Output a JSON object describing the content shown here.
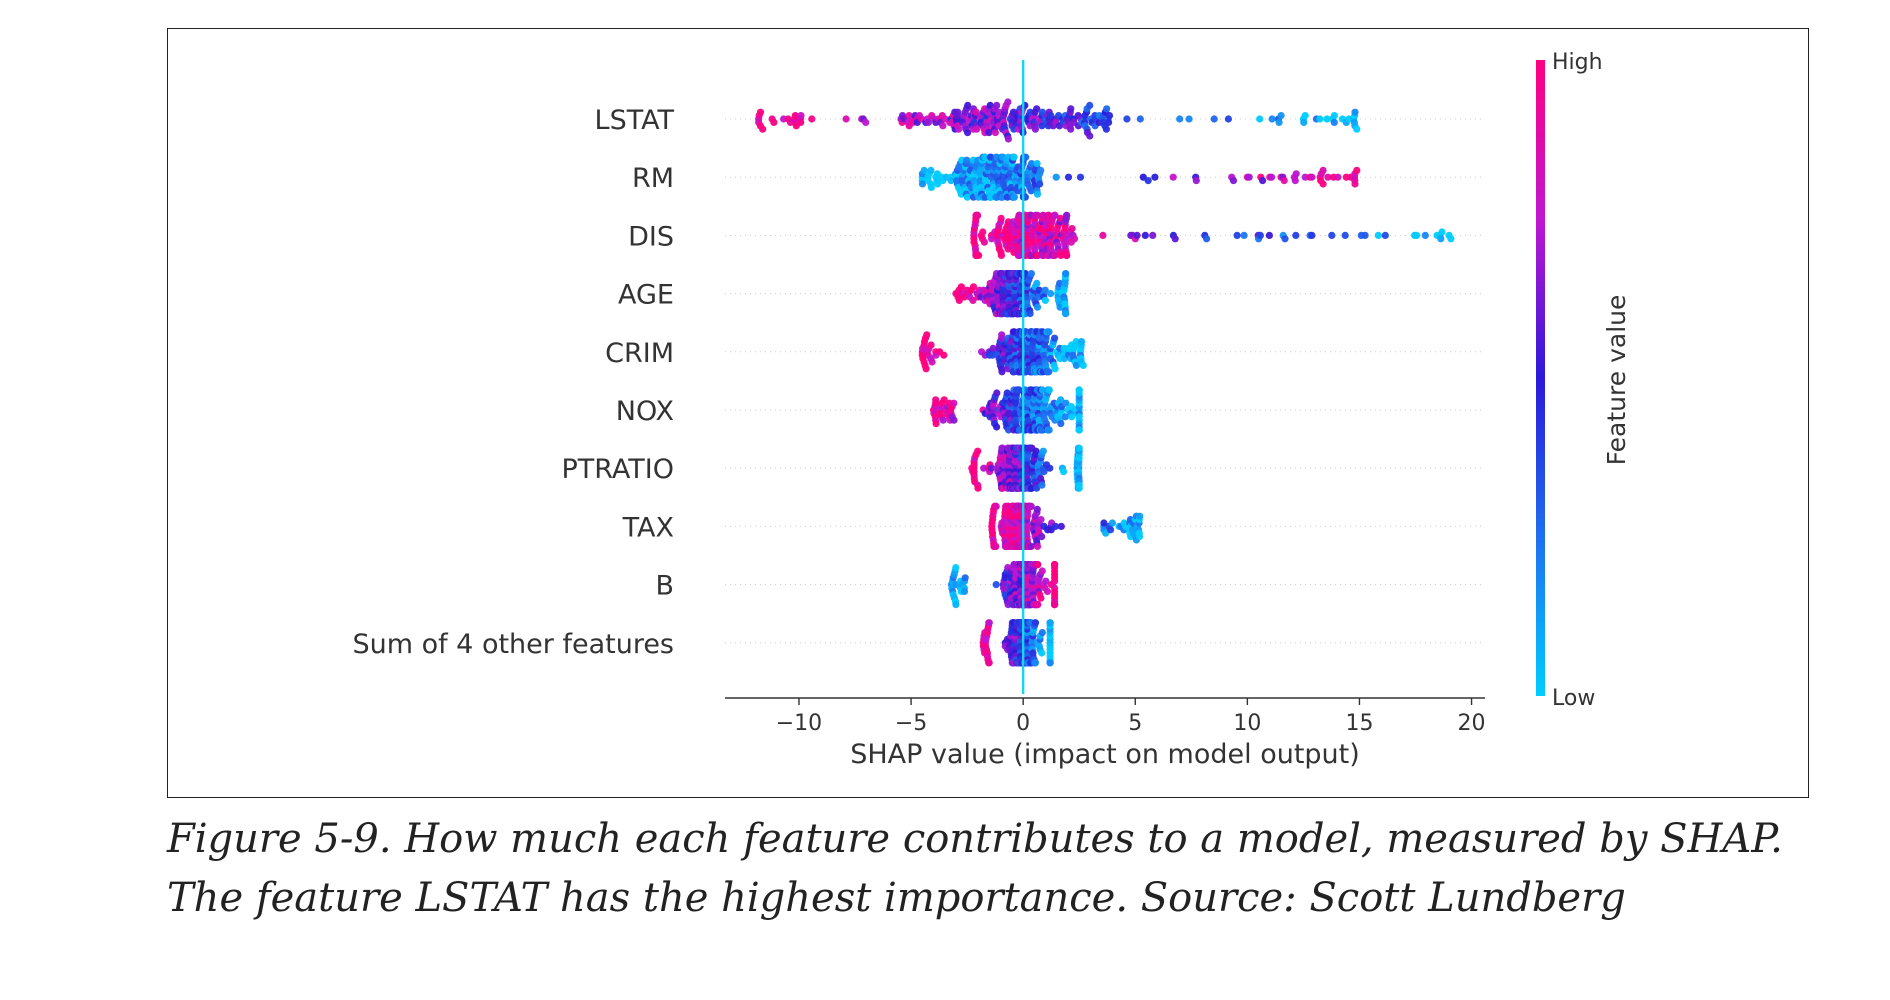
{
  "chart_data": {
    "type": "scatter",
    "subtype": "beeswarm",
    "title": "",
    "xlabel": "SHAP value (impact on model output)",
    "ylabel": "",
    "xlim": [
      -13.3,
      20.6
    ],
    "xticks": [
      -10,
      -5,
      0,
      5,
      10,
      15,
      20
    ],
    "xtick_labels": [
      "−10",
      "−5",
      "0",
      "5",
      "10",
      "15",
      "20"
    ],
    "grid": false,
    "zero_line": 0,
    "zero_line_color": "#19d4f0",
    "features": [
      {
        "name": "LSTAT",
        "min": -11.8,
        "max": 14.8,
        "dense_min": -5.5,
        "dense_max": 4.0,
        "center": -0.3,
        "spread": 3.2,
        "high_side": "negative",
        "clusters": [
          -11.8,
          -11.2,
          -10.2,
          12.5,
          13.8,
          14.8
        ]
      },
      {
        "name": "RM",
        "min": -4.5,
        "max": 14.8,
        "dense_min": -3.5,
        "dense_max": 0.8,
        "center": -1.2,
        "spread": 1.4,
        "high_side": "positive",
        "clusters": [
          9.3,
          10.0,
          10.6,
          11.0,
          11.5,
          12.1,
          12.8,
          13.3,
          14.8
        ]
      },
      {
        "name": "DIS",
        "min": -2.2,
        "max": 19.0,
        "dense_min": -2.0,
        "dense_max": 2.5,
        "center": 0.4,
        "spread": 1.0,
        "high_side": "negative",
        "clusters": [
          4.8,
          5.0,
          6.7,
          8.1,
          10.5,
          11.6,
          12.8,
          18.6,
          19.0
        ]
      },
      {
        "name": "AGE",
        "min": -3.0,
        "max": 1.9,
        "dense_min": -1.8,
        "dense_max": 1.5,
        "center": -0.5,
        "spread": 0.7,
        "high_side": "negative",
        "clusters": [
          -3.0
        ]
      },
      {
        "name": "CRIM",
        "min": -4.5,
        "max": 2.6,
        "dense_min": -3.5,
        "dense_max": 1.8,
        "center": 0.1,
        "spread": 0.8,
        "high_side": "negative",
        "clusters": [
          -4.5,
          -4.2,
          2.6
        ]
      },
      {
        "name": "NOX",
        "min": -4.0,
        "max": 2.5,
        "dense_min": -3.0,
        "dense_max": 2.5,
        "center": 0.2,
        "spread": 0.9,
        "high_side": "negative",
        "clusters": [
          -4.0,
          -3.7
        ]
      },
      {
        "name": "PTRATIO",
        "min": -2.3,
        "max": 2.5,
        "dense_min": -2.0,
        "dense_max": 2.4,
        "center": -0.2,
        "spread": 0.6,
        "high_side": "negative",
        "clusters": []
      },
      {
        "name": "TAX",
        "min": -1.4,
        "max": 5.2,
        "dense_min": -1.2,
        "dense_max": 4.2,
        "center": -0.2,
        "spread": 0.5,
        "high_side": "negative",
        "clusters": [
          3.6,
          3.9,
          4.5,
          5.1
        ]
      },
      {
        "name": "B",
        "min": -3.2,
        "max": 1.4,
        "dense_min": -2.5,
        "dense_max": 1.4,
        "center": 0.0,
        "spread": 0.4,
        "high_side": "positive",
        "clusters": []
      },
      {
        "name": "Sum of 4 other features",
        "min": -1.8,
        "max": 1.2,
        "dense_min": -1.5,
        "dense_max": 1.2,
        "center": 0.0,
        "spread": 0.3,
        "high_side": "negative",
        "clusters": []
      }
    ],
    "colorbar": {
      "label": "Feature value",
      "high_label": "High",
      "low_label": "Low",
      "colors": [
        "#00ccff",
        "#1e6ff0",
        "#2b19d9",
        "#c016d1",
        "#ff0080"
      ]
    }
  },
  "caption": "Figure 5-9. How much each feature contributes to a model, measured by SHAP. The feature LSTAT has the highest importance. Source: Scott Lundberg"
}
